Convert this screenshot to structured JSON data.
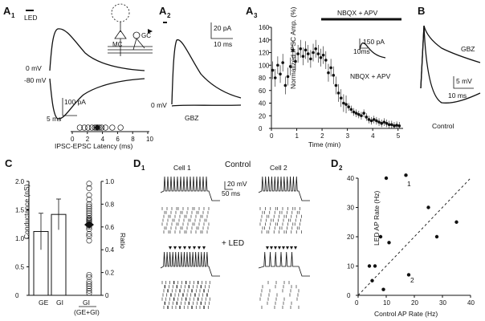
{
  "panels": {
    "A1": {
      "letter": "A",
      "sub": "1",
      "led": "LED",
      "v0": "0 mV",
      "v80": "-80 mV",
      "sb_pa": "100 pA",
      "sb_ms": "5 ms",
      "xlabel": "IPSC-EPSC Latency (ms)",
      "ticks": [
        "0",
        "2",
        "4",
        "6",
        "8",
        "10"
      ],
      "mc": "MC",
      "gc": "GC",
      "latency_points": [
        1.0,
        1.6,
        2.1,
        2.6,
        3.0,
        3.2,
        3.4,
        3.6,
        3.9,
        4.4,
        5.3,
        6.4
      ]
    },
    "A2": {
      "letter": "A",
      "sub": "2",
      "v0": "0 mV",
      "gbz": "GBZ",
      "sb_pa": "20 pA",
      "sb_ms": "10 ms"
    },
    "A3": {
      "letter": "A",
      "sub": "3",
      "drug_bar": "NBQX + APV",
      "inset_label": "NBQX + APV",
      "sb_pa": "150 pA",
      "sb_ms": "10ms"
    },
    "B": {
      "letter": "B",
      "gbz": "GBZ",
      "control": "Control",
      "sb_mv": "5 mV",
      "sb_ms": "10 ms"
    },
    "C": {
      "letter": "C",
      "ylabel_left": "Conductance (nS)",
      "ylabel_right": "Ratio",
      "xcat": [
        "GE",
        "GI",
        "GI"
      ],
      "xfrac": "(GE+GI)",
      "left_ticks": [
        "0",
        "0.5",
        "1.0",
        "1.5",
        "2.0"
      ],
      "right_ticks": [
        "0",
        "0.2",
        "0.4",
        "0.6",
        "0.8",
        "1.0"
      ]
    },
    "D1": {
      "letter": "D",
      "sub": "1",
      "cell1": "Cell 1",
      "cell2": "Cell 2",
      "control": "Control",
      "led": "+ LED",
      "sb_mv": "20 mV",
      "sb_ms": "50 ms"
    },
    "D2": {
      "letter": "D",
      "sub": "2",
      "xlabel": "Control AP Rate (Hz)",
      "ylabel": "LED AP Rate (Hz)",
      "ticks": [
        "0",
        "10",
        "20",
        "30",
        "40"
      ],
      "lab1": "1",
      "lab2": "2"
    }
  },
  "chart_data": [
    {
      "type": "scatter",
      "panel": "A3",
      "xlabel": "Time (min)",
      "ylabel": "Normalized IPSC Amp. (%)",
      "xlim": [
        0,
        5.2
      ],
      "ylim": [
        0,
        160
      ],
      "xticks": [
        "0",
        "1",
        "2",
        "3",
        "4",
        "5"
      ],
      "yticks": [
        "0",
        "20",
        "40",
        "60",
        "80",
        "100",
        "120",
        "140",
        "160"
      ],
      "x": [
        0.05,
        0.15,
        0.25,
        0.35,
        0.45,
        0.55,
        0.65,
        0.75,
        0.85,
        0.95,
        1.05,
        1.15,
        1.25,
        1.35,
        1.45,
        1.55,
        1.65,
        1.75,
        1.85,
        1.95,
        2.05,
        2.15,
        2.25,
        2.35,
        2.45,
        2.55,
        2.65,
        2.75,
        2.85,
        2.95,
        3.05,
        3.15,
        3.25,
        3.35,
        3.45,
        3.55,
        3.65,
        3.75,
        3.85,
        3.95,
        4.05,
        4.15,
        4.25,
        4.35,
        4.45,
        4.55,
        4.65,
        4.75,
        4.85,
        4.95,
        5.05
      ],
      "y": [
        92,
        80,
        100,
        86,
        104,
        68,
        82,
        98,
        124,
        106,
        118,
        126,
        114,
        124,
        118,
        110,
        120,
        126,
        118,
        112,
        116,
        108,
        88,
        96,
        84,
        68,
        56,
        48,
        40,
        38,
        34,
        30,
        26,
        24,
        22,
        20,
        24,
        18,
        14,
        12,
        14,
        12,
        10,
        8,
        10,
        8,
        6,
        6,
        4,
        5,
        4
      ]
    },
    {
      "type": "scatter",
      "panel": "D2",
      "xlabel": "Control AP Rate (Hz)",
      "ylabel": "LED AP Rate (Hz)",
      "xlim": [
        0,
        40
      ],
      "ylim": [
        0,
        40
      ],
      "x": [
        4,
        5,
        6,
        8,
        9,
        10,
        11,
        17,
        18,
        25,
        28,
        35
      ],
      "y": [
        10,
        5,
        10,
        20,
        2,
        40,
        18,
        41,
        7,
        30,
        20,
        25
      ]
    },
    {
      "type": "bar",
      "panel": "C",
      "ylabel": "Conductance (nS)",
      "ylim": [
        0,
        2.0
      ],
      "categories": [
        "GE",
        "GI"
      ],
      "values": [
        1.12,
        1.42
      ],
      "errors": [
        0.32,
        0.27
      ],
      "ratio_points": [
        0.02,
        0.04,
        0.06,
        0.08,
        0.1,
        0.12,
        0.16,
        0.18,
        0.48,
        0.52,
        0.54,
        0.58,
        0.6,
        0.62,
        0.64,
        0.65,
        0.66,
        0.67,
        0.68,
        0.7,
        0.72,
        0.74,
        0.76,
        0.78,
        0.8,
        0.84,
        0.88,
        0.94,
        0.98
      ],
      "ratio_mean": 0.62
    }
  ]
}
